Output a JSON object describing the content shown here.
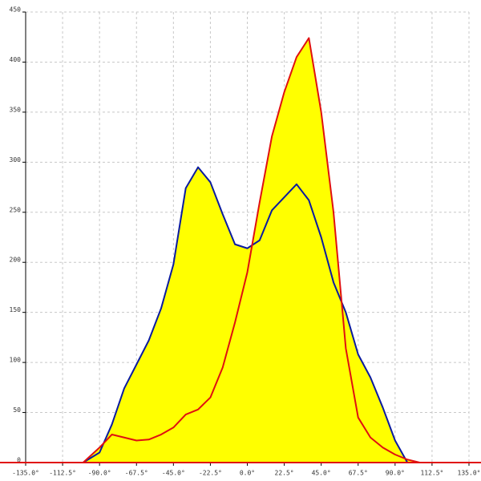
{
  "chart_data": {
    "type": "line",
    "x": [
      -100,
      -90,
      -82.5,
      -75,
      -67.5,
      -60,
      -52.5,
      -45,
      -37.5,
      -30,
      -22.5,
      -15,
      -7.5,
      0,
      7.5,
      15,
      22.5,
      30,
      37.5,
      45,
      52.5,
      60,
      67.5,
      75,
      82.5,
      90,
      97.5,
      105
    ],
    "series": [
      {
        "color": "#0a1aa0",
        "values": [
          0,
          10,
          38,
          74,
          98,
          122,
          154,
          198,
          274,
          295,
          280,
          248,
          218,
          214,
          222,
          252,
          265,
          278,
          262,
          225,
          180,
          150,
          108,
          85,
          55,
          22,
          0,
          null
        ]
      },
      {
        "color": "#e01010",
        "values": [
          0,
          15,
          28,
          25,
          22,
          23,
          28,
          35,
          48,
          53,
          65,
          95,
          140,
          190,
          260,
          326,
          370,
          405,
          424,
          350,
          250,
          114,
          45,
          25,
          15,
          8,
          3,
          0
        ]
      }
    ],
    "fill_color": "#ffff00",
    "xlim": [
      -135,
      135
    ],
    "xticks": [
      {
        "value": -135,
        "label": "-135.0°"
      },
      {
        "value": -112.5,
        "label": "-112.5°"
      },
      {
        "value": -90,
        "label": "-90.0°"
      },
      {
        "value": -67.5,
        "label": "-67.5°"
      },
      {
        "value": -45,
        "label": "-45.0°"
      },
      {
        "value": -22.5,
        "label": "-22.5°"
      },
      {
        "value": 0,
        "label": "0.0°"
      },
      {
        "value": 22.5,
        "label": "22.5°"
      },
      {
        "value": 45,
        "label": "45.0°"
      },
      {
        "value": 67.5,
        "label": "67.5°"
      },
      {
        "value": 90,
        "label": "90.0°"
      },
      {
        "value": 112.5,
        "label": "112.5°"
      },
      {
        "value": 135,
        "label": "135.0°"
      }
    ],
    "ylim": [
      0,
      450
    ],
    "yticks": [
      0,
      50,
      100,
      150,
      200,
      250,
      300,
      350,
      400,
      450
    ],
    "grid": true
  }
}
